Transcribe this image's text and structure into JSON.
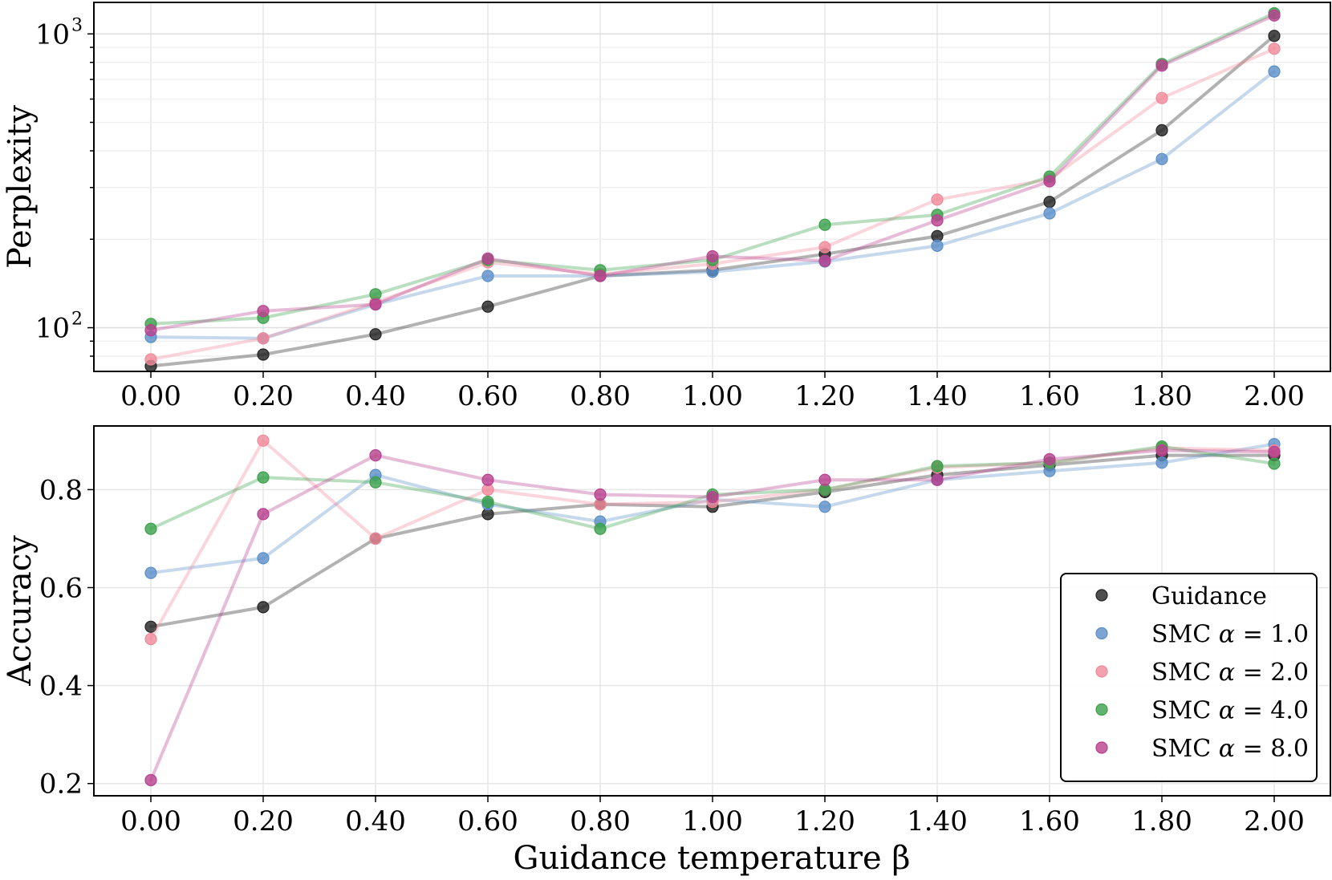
{
  "chart_data": {
    "type": "line",
    "x": [
      0.0,
      0.2,
      0.4,
      0.6,
      0.8,
      1.0,
      1.2,
      1.4,
      1.6,
      1.8,
      2.0
    ],
    "xtick_labels": [
      "0.00",
      "0.20",
      "0.40",
      "0.60",
      "0.80",
      "1.00",
      "1.20",
      "1.40",
      "1.60",
      "1.80",
      "2.00"
    ],
    "xlabel": "Guidance temperature β",
    "colors": {
      "guidance": "#222222",
      "smc_1": "#5b8fc9",
      "smc_2": "#f08a9a",
      "smc_4": "#3aa04b",
      "smc_8": "#b8408f"
    },
    "legend": {
      "position": "lower-right",
      "entries": [
        {
          "key": "guidance",
          "name": "Guidance",
          "alpha_value": ""
        },
        {
          "key": "smc_1",
          "name": "SMC",
          "alpha_value": "1.0"
        },
        {
          "key": "smc_2",
          "name": "SMC",
          "alpha_value": "2.0"
        },
        {
          "key": "smc_4",
          "name": "SMC",
          "alpha_value": "4.0"
        },
        {
          "key": "smc_8",
          "name": "SMC",
          "alpha_value": "8.0"
        }
      ]
    },
    "panels": [
      {
        "id": "perplexity",
        "ylabel": "Perplexity",
        "yscale": "log",
        "ylim": [
          71,
          1280
        ],
        "yticks": [
          {
            "value": 100,
            "base": "10",
            "exp": "2"
          },
          {
            "value": 1000,
            "base": "10",
            "exp": "3"
          }
        ],
        "series": [
          {
            "key": "guidance",
            "values": [
              74,
              81,
              95,
              118,
              150,
              157,
              178,
              205,
              268,
              470,
              985
            ]
          },
          {
            "key": "smc_1",
            "values": [
              93,
              92,
              120,
              150,
              150,
              155,
              168,
              190,
              245,
              375,
              745
            ]
          },
          {
            "key": "smc_2",
            "values": [
              78,
              92,
              122,
              167,
              152,
              165,
              188,
              273,
              320,
              605,
              890
            ]
          },
          {
            "key": "smc_4",
            "values": [
              103,
              108,
              130,
              170,
              157,
              170,
              224,
              242,
              327,
              790,
              1175
            ]
          },
          {
            "key": "smc_8",
            "values": [
              98,
              114,
              120,
              172,
              150,
              175,
              169,
              232,
              315,
              780,
              1155
            ]
          }
        ]
      },
      {
        "id": "accuracy",
        "ylabel": "Accuracy",
        "yscale": "linear",
        "ylim": [
          0.175,
          0.93
        ],
        "yticks": [
          {
            "value": 0.2,
            "label": "0.2"
          },
          {
            "value": 0.4,
            "label": "0.4"
          },
          {
            "value": 0.6,
            "label": "0.6"
          },
          {
            "value": 0.8,
            "label": "0.8"
          }
        ],
        "series": [
          {
            "key": "guidance",
            "values": [
              0.52,
              0.56,
              0.7,
              0.75,
              0.77,
              0.765,
              0.795,
              0.83,
              0.85,
              0.87,
              0.87
            ]
          },
          {
            "key": "smc_1",
            "values": [
              0.63,
              0.66,
              0.83,
              0.77,
              0.735,
              0.78,
              0.765,
              0.82,
              0.838,
              0.855,
              0.893
            ]
          },
          {
            "key": "smc_2",
            "values": [
              0.495,
              0.9,
              0.7,
              0.8,
              0.77,
              0.775,
              0.8,
              0.845,
              0.855,
              0.885,
              0.88
            ]
          },
          {
            "key": "smc_4",
            "values": [
              0.72,
              0.825,
              0.815,
              0.775,
              0.72,
              0.79,
              0.8,
              0.848,
              0.855,
              0.888,
              0.853
            ]
          },
          {
            "key": "smc_8",
            "values": [
              0.207,
              0.75,
              0.87,
              0.82,
              0.79,
              0.785,
              0.82,
              0.82,
              0.862,
              0.88,
              0.877
            ]
          }
        ]
      }
    ]
  }
}
